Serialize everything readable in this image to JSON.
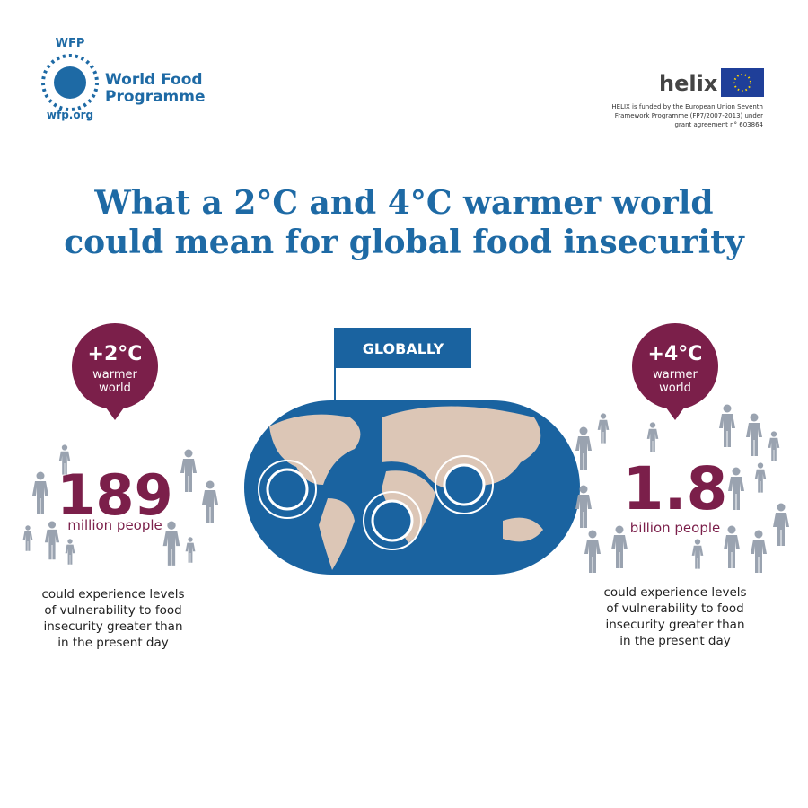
{
  "header": {
    "wfp": {
      "acronym": "WFP",
      "name_lines": [
        "World Food",
        "Programme"
      ],
      "url": "wfp.org"
    },
    "helix": {
      "logo": "helix",
      "funding_lines": [
        "HELIX is funded by the European Union Seventh",
        "Framework Programme (FP7/2007-2013) under",
        "grant agreement n° 603864"
      ]
    }
  },
  "title_lines": [
    "What a 2°C and 4°C warmer world",
    "could mean for global food insecurity"
  ],
  "center": {
    "banner": "GLOBALLY"
  },
  "left": {
    "temperature": "+2°C",
    "bubble_lines": [
      "warmer",
      "world"
    ],
    "figure": "189",
    "unit": "million people",
    "description_lines": [
      "could experience levels",
      "of vulnerability to food",
      "insecurity greater than",
      "in the present day"
    ]
  },
  "right": {
    "temperature": "+4°C",
    "bubble_lines": [
      "warmer",
      "world"
    ],
    "figure": "1.8",
    "unit": "billion people",
    "description_lines": [
      "could experience levels",
      "of vulnerability to food",
      "insecurity greater than",
      "in the present day"
    ]
  }
}
